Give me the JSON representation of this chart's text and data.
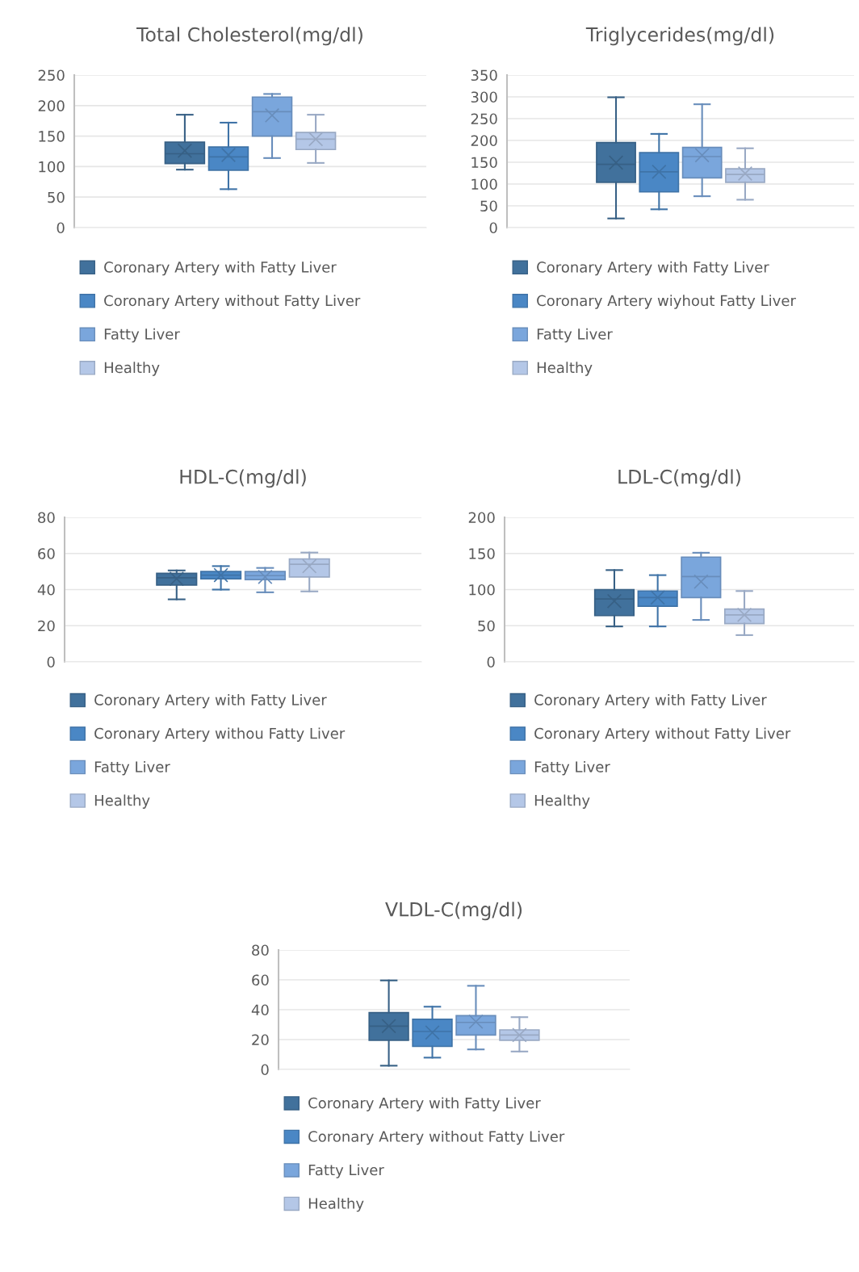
{
  "chart_data": [
    {
      "type": "box",
      "title": "Total Cholesterol(mg/dl)",
      "categories": [
        null
      ],
      "ylim": [
        0,
        250
      ],
      "yticks": [
        0,
        50,
        100,
        150,
        200,
        250
      ],
      "grid": "y",
      "legend": "bottom",
      "tick_labels": "y",
      "series": [
        {
          "name": "Coronary Artery with Fatty Liver",
          "color": "#41719c",
          "boxes": [
            {
              "low": 95,
              "q1": 105,
              "median": 121,
              "q3": 140,
              "high": 185,
              "mean": 126
            }
          ]
        },
        {
          "name": "Coronary Artery without Fatty Liver",
          "color": "#4a87c5",
          "boxes": [
            {
              "low": 63,
              "q1": 94,
              "median": 116,
              "q3": 132,
              "high": 172,
              "mean": 119
            }
          ]
        },
        {
          "name": "Fatty Liver",
          "color": "#7aa6dc",
          "boxes": [
            {
              "low": 114,
              "q1": 150,
              "median": 190,
              "q3": 214,
              "high": 219,
              "mean": 184
            }
          ]
        },
        {
          "name": "Healthy",
          "color": "#b4c7e7",
          "boxes": [
            {
              "low": 106,
              "q1": 128,
              "median": 145,
              "q3": 156,
              "high": 185,
              "mean": 145
            }
          ]
        }
      ]
    },
    {
      "type": "box",
      "title": "Triglycerides(mg/dl)",
      "categories": [
        null
      ],
      "ylim": [
        0,
        350
      ],
      "yticks": [
        0,
        50,
        100,
        150,
        200,
        250,
        300,
        350
      ],
      "grid": "y",
      "legend": "bottom",
      "tick_labels": "y",
      "series": [
        {
          "name": "Coronary Artery with Fatty Liver",
          "color": "#41719c",
          "boxes": [
            {
              "low": 21,
              "q1": 104,
              "median": 145,
              "q3": 195,
              "high": 299,
              "mean": 149
            }
          ]
        },
        {
          "name": "Coronary Artery wiyhout Fatty Liver",
          "color": "#4a87c5",
          "boxes": [
            {
              "low": 42,
              "q1": 82,
              "median": 128,
              "q3": 172,
              "high": 215,
              "mean": 128
            }
          ]
        },
        {
          "name": "Fatty Liver",
          "color": "#7aa6dc",
          "boxes": [
            {
              "low": 72,
              "q1": 114,
              "median": 163,
              "q3": 184,
              "high": 283,
              "mean": 166
            }
          ]
        },
        {
          "name": "Healthy",
          "color": "#b4c7e7",
          "boxes": [
            {
              "low": 64,
              "q1": 104,
              "median": 122,
              "q3": 135,
              "high": 182,
              "mean": 124
            }
          ]
        }
      ]
    },
    {
      "type": "box",
      "title": "HDL-C(mg/dl)",
      "categories": [
        null
      ],
      "ylim": [
        0,
        80
      ],
      "yticks": [
        0,
        20,
        40,
        60,
        80
      ],
      "grid": "y",
      "legend": "bottom",
      "tick_labels": "y",
      "series": [
        {
          "name": "Coronary Artery with Fatty Liver",
          "color": "#41719c",
          "boxes": [
            {
              "low": 34.6,
              "q1": 42.5,
              "median": 46.5,
              "q3": 49,
              "high": 50.6,
              "mean": 46
            }
          ]
        },
        {
          "name": "Coronary Artery withou Fatty Liver",
          "color": "#4a87c5",
          "boxes": [
            {
              "low": 40,
              "q1": 46,
              "median": 48,
              "q3": 50,
              "high": 53,
              "mean": 48
            }
          ]
        },
        {
          "name": "Fatty Liver",
          "color": "#7aa6dc",
          "boxes": [
            {
              "low": 38.5,
              "q1": 45.5,
              "median": 47.7,
              "q3": 50,
              "high": 52,
              "mean": 47
            }
          ]
        },
        {
          "name": "Healthy",
          "color": "#b4c7e7",
          "boxes": [
            {
              "low": 39,
              "q1": 47,
              "median": 54,
              "q3": 57,
              "high": 60.5,
              "mean": 53
            }
          ]
        }
      ]
    },
    {
      "type": "box",
      "title": "LDL-C(mg/dl)",
      "categories": [
        null
      ],
      "ylim": [
        0,
        200
      ],
      "yticks": [
        0,
        50,
        100,
        150,
        200
      ],
      "grid": "y",
      "legend": "bottom",
      "tick_labels": "y",
      "series": [
        {
          "name": "Coronary Artery with Fatty Liver",
          "color": "#41719c",
          "boxes": [
            {
              "low": 49,
              "q1": 64,
              "median": 87,
              "q3": 100,
              "high": 127,
              "mean": 84
            }
          ]
        },
        {
          "name": "Coronary Artery without Fatty Liver",
          "color": "#4a87c5",
          "boxes": [
            {
              "low": 49,
              "q1": 77,
              "median": 89,
              "q3": 98,
              "high": 120,
              "mean": 89
            }
          ]
        },
        {
          "name": "Fatty Liver",
          "color": "#7aa6dc",
          "boxes": [
            {
              "low": 58,
              "q1": 89,
              "median": 118,
              "q3": 145,
              "high": 151,
              "mean": 111
            }
          ]
        },
        {
          "name": "Healthy",
          "color": "#b4c7e7",
          "boxes": [
            {
              "low": 37,
              "q1": 53,
              "median": 65,
              "q3": 73,
              "high": 98,
              "mean": 65
            }
          ]
        }
      ]
    },
    {
      "type": "box",
      "title": "VLDL-C(mg/dl)",
      "categories": [
        null
      ],
      "ylim": [
        0,
        80
      ],
      "yticks": [
        0,
        20,
        40,
        60,
        80
      ],
      "grid": "y",
      "legend": "bottom",
      "tick_labels": "y",
      "series": [
        {
          "name": "Coronary Artery with Fatty Liver",
          "color": "#41719c",
          "boxes": [
            {
              "low": 2.5,
              "q1": 19.5,
              "median": 29,
              "q3": 38,
              "high": 59.6,
              "mean": 29
            }
          ]
        },
        {
          "name": "Coronary Artery without Fatty Liver",
          "color": "#4a87c5",
          "boxes": [
            {
              "low": 7.9,
              "q1": 15.4,
              "median": 25.4,
              "q3": 33.6,
              "high": 42,
              "mean": 24.7
            }
          ]
        },
        {
          "name": "Fatty Liver",
          "color": "#7aa6dc",
          "boxes": [
            {
              "low": 13.4,
              "q1": 23,
              "median": 31.5,
              "q3": 36,
              "high": 56,
              "mean": 32
            }
          ]
        },
        {
          "name": "Healthy",
          "color": "#b4c7e7",
          "boxes": [
            {
              "low": 12,
              "q1": 19.5,
              "median": 23,
              "q3": 26.5,
              "high": 35,
              "mean": 23
            }
          ]
        }
      ]
    }
  ]
}
